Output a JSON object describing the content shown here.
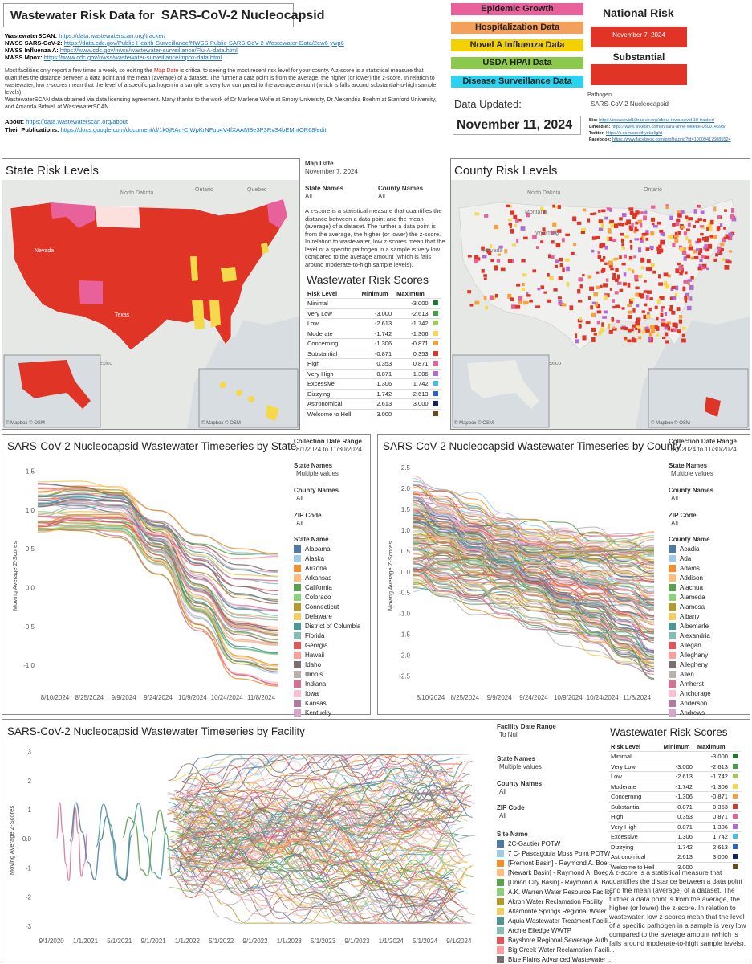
{
  "header": {
    "title_prefix": "Wastewater Risk Data for",
    "title_pathogen": "SARS-CoV-2 Nucleocapsid",
    "links": [
      {
        "label": "WastewaterSCAN:",
        "url": "https://data.wastewaterscan.org/tracker/"
      },
      {
        "label": "NWSS SARS-CoV-2:",
        "url": "https://data.cdc.gov/Public-Health-Surveillance/NWSS-Public-SARS-CoV-2-Wastewater-Data/2ew6-ywp6"
      },
      {
        "label": "NWSS Influenza A:",
        "url": "https://www.cdc.gov/nwss/wastewater-surveillance/Flu-A-data.html"
      },
      {
        "label": "NWSS Mpox:",
        "url": "https://www.cdc.gov/nwss/wastewater-surveillance/mpox-data.html"
      }
    ],
    "para1_a": "Most facilities only report a few times a week, so editing the",
    "para1_highlight": "Map Date",
    "para1_b": "is critical to seeing the most recent risk level for your county. A z-score is a statistical measure that quantifies the distance between a data point and the mean (average) of a dataset. The further a data point is from the average, the higher (or lower) the z-score. In relation to wastewater, low z-scores mean that the level of a specific pathogen in a sample is very low compared to the average amount (which is falls around substantial-to-high sample levels).",
    "para2": "WastewaterSCAN data obtained via data licensing agreement. Many thanks to the work of Dr Marlene Wolfe at Emory University, Dr Alexandria Boehm at Stanford University, and Amanda Bidwell at WastewaterSCAN.",
    "about_label": "About:",
    "about_url": "https://data.wastewaterscan.org/about",
    "pubs_label": "Their Publications:",
    "pubs_url": "https://docs.google.com/document/d/1k0jRAu-CIWpKrNFub4V4fXAAMBe3P3RvS4bEMhtOR68/edit"
  },
  "nav_buttons": [
    {
      "label": "Epidemic Growth",
      "color": "#e8619a"
    },
    {
      "label": "Hospitalization Data",
      "color": "#f5a05a"
    },
    {
      "label": "Novel A Influenza Data",
      "color": "#f5d000"
    },
    {
      "label": "USDA HPAI Data",
      "color": "#8cc84b"
    },
    {
      "label": "Disease Surveillance Data",
      "color": "#2ad4f0"
    }
  ],
  "data_updated": {
    "label": "Data Updated:",
    "date": "November 11, 2024"
  },
  "national_risk": {
    "title": "National Risk",
    "date": "November 7, 2024",
    "level": "Substantial",
    "color": "#e03426"
  },
  "pathogen": {
    "label": "Pathogen",
    "value": "SARS-CoV-2 Nucleocapsid"
  },
  "social": [
    {
      "label": "Bio:",
      "url": "https://iowacovid19tracker.org/about-iowa-covid-19-tracker/"
    },
    {
      "label": "Linked-In:",
      "url": "https://www.linkedin.com/in/sara-anne-willette-080014598/"
    },
    {
      "label": "Twitter:",
      "url": "https://x.com/amethystarlight"
    },
    {
      "label": "Facebook:",
      "url": "https://www.facebook.com/profile.php?id=100094175085524"
    }
  ],
  "state_map": {
    "title": "State Risk Levels",
    "attribution": "© Mapbox © OSM",
    "labels": [
      "North Dakota",
      "Ontario",
      "Quebec",
      "Nevada",
      "Texas",
      "Mexico"
    ]
  },
  "county_map": {
    "title": "County Risk Levels",
    "attribution": "© Mapbox © OSM",
    "labels": [
      "North Dakota",
      "Montana",
      "Wyoming",
      "Ontario",
      "Nevada",
      "Mexico"
    ]
  },
  "filters_top": {
    "map_date_label": "Map Date",
    "map_date": "November 7, 2024",
    "state_names_label": "State Names",
    "state_names": "All",
    "county_names_label": "County Names",
    "county_names": "All",
    "zscore_text": "A z-score is a statistical measure that quantifies the distance between a data point and the mean (average) of a dataset. The further a data point is from the average, the higher (or lower) the z-score. In relation to wastewater, low z-scores mean that the level of a specific pathogen in a sample is very low compared to the average amount (which is falls around moderate-to-high sample levels)."
  },
  "risk_scores": {
    "title": "Wastewater Risk Scores",
    "headers": [
      "Risk Level",
      "Minimum",
      "Maximum"
    ],
    "rows": [
      {
        "level": "Minimal",
        "min": "",
        "max": "-3.000",
        "color": "#1a7a2e"
      },
      {
        "level": "Very Low",
        "min": "-3.000",
        "max": "-2.613",
        "color": "#3fa33f"
      },
      {
        "level": "Low",
        "min": "-2.613",
        "max": "-1.742",
        "color": "#9ccc50"
      },
      {
        "level": "Moderate",
        "min": "-1.742",
        "max": "-1.306",
        "color": "#f5d94a"
      },
      {
        "level": "Concerning",
        "min": "-1.306",
        "max": "-0.871",
        "color": "#f5a13c"
      },
      {
        "level": "Substantial",
        "min": "-0.871",
        "max": "0.353",
        "color": "#e03426"
      },
      {
        "level": "High",
        "min": "0.353",
        "max": "0.871",
        "color": "#e8619a"
      },
      {
        "level": "Very High",
        "min": "0.871",
        "max": "1.306",
        "color": "#b46ad6"
      },
      {
        "level": "Excessive",
        "min": "1.306",
        "max": "1.742",
        "color": "#3fc4e0"
      },
      {
        "level": "Dizzying",
        "min": "1.742",
        "max": "2.613",
        "color": "#2a5fd6"
      },
      {
        "level": "Astronomical",
        "min": "2.613",
        "max": "3.000",
        "color": "#12216b"
      },
      {
        "level": "Welcome to Hell",
        "min": "3.000",
        "max": "",
        "color": "#6b4a1a"
      }
    ]
  },
  "state_ts": {
    "title": "SARS-CoV-2 Nucleocapsid Wastewater Timeseries by State",
    "range_label": "Collection Date Range",
    "range": "8/1/2024 to 11/30/2024",
    "state_names_label": "State Names",
    "state_names": "Multiple values",
    "county_names_label": "County Names",
    "county_names": "All",
    "zip_label": "ZIP Code",
    "zip": "All",
    "legend_title": "State Name",
    "legend": [
      "Alabama",
      "Alaska",
      "Arizona",
      "Arkansas",
      "California",
      "Colorado",
      "Connecticut",
      "Delaware",
      "District of Columbia",
      "Florida",
      "Georgia",
      "Hawaii",
      "Idaho",
      "Illinois",
      "Indiana",
      "Iowa",
      "Kansas",
      "Kentucky"
    ],
    "ylabel": "Moving Average Z-Scores"
  },
  "county_ts": {
    "title": "SARS-CoV-2 Nucleocapsid Wastewater Timeseries by County",
    "range_label": "Collection Date Range",
    "range": "8/1/2024 to 11/30/2024",
    "state_names_label": "State Names",
    "state_names": "Multiple values",
    "county_names_label": "County Names",
    "county_names": "All",
    "zip_label": "ZIP Code",
    "zip": "All",
    "legend_title": "County Name",
    "legend": [
      "Acadia",
      "Ada",
      "Adams",
      "Addison",
      "Alachua",
      "Alameda",
      "Alamosa",
      "Albany",
      "Albemarle",
      "Alexandria",
      "Allegan",
      "Alleghany",
      "Allegheny",
      "Allen",
      "Amherst",
      "Anchorage",
      "Anderson",
      "Andrews"
    ],
    "ylabel": "Moving Average Z-Scores"
  },
  "facility_ts": {
    "title": "SARS-CoV-2 Nucleocapsid Wastewater Timeseries by Facility",
    "range_label": "Facility Date Range",
    "range": "To Null",
    "state_names_label": "State Names",
    "state_names": "Multiple values",
    "county_names_label": "County Names",
    "county_names": "All",
    "zip_label": "ZIP Code",
    "zip": "All",
    "legend_title": "Site Name",
    "legend": [
      "2C-Gautier POTW",
      "7 C- Pascagoula Moss Point POTW",
      "[Fremont Basin] - Raymond A. Boe...",
      "[Newark Basin] - Raymond A. Boeg...",
      "[Union City Basin] - Raymond A. Bo...",
      "A.K. Warren Water Resource Facility",
      "Akron Water Reclamation Facility",
      "Altamonte Springs Regional Water...",
      "Aquia Wastewater Treatment Facili...",
      "Archie Elledge WWTP",
      "Bayshore Regional Sewerage Auth...",
      "Big Creek Water Reclamation Facili...",
      "Blue Plains Advanced Wastewater ..."
    ],
    "ylabel": "Moving Average Z-Scores",
    "zscore_text": "A z-score is a statistical measure that quantifies the distance between a data point and the mean (average) of a dataset. The further a data point is from the average, the higher (or lower) the z-score. In relation to wastewater, low z-scores mean that the level of a specific pathogen in a sample is very low compared to the average amount (which is falls around moderate-to-high sample levels)."
  },
  "chart_data": [
    {
      "type": "line",
      "title": "SARS-CoV-2 Nucleocapsid Wastewater Timeseries by State",
      "ylabel": "Moving Average Z-Scores",
      "x": [
        "8/10/2024",
        "8/25/2024",
        "9/9/2024",
        "9/24/2024",
        "10/9/2024",
        "10/24/2024",
        "11/8/2024"
      ],
      "ylim": [
        -1.3,
        1.6
      ],
      "yticks": [
        -1.0,
        -0.5,
        0.0,
        0.5,
        1.0,
        1.5
      ],
      "series_summary": {
        "start_range": [
          0.7,
          1.5
        ],
        "end_range": [
          -1.3,
          0.45
        ]
      }
    },
    {
      "type": "line",
      "title": "SARS-CoV-2 Nucleocapsid Wastewater Timeseries by County",
      "ylabel": "Moving Average Z-Scores",
      "x": [
        "8/10/2024",
        "8/25/2024",
        "9/9/2024",
        "9/24/2024",
        "10/9/2024",
        "10/24/2024",
        "11/8/2024"
      ],
      "ylim": [
        -2.8,
        2.6
      ],
      "yticks": [
        -2.5,
        -2.0,
        -1.5,
        -1.0,
        -0.5,
        0.0,
        0.5,
        1.0,
        1.5,
        2.0,
        2.5
      ]
    },
    {
      "type": "line",
      "title": "SARS-CoV-2 Nucleocapsid Wastewater Timeseries by Facility",
      "ylabel": "Moving Average Z-Scores",
      "x": [
        "9/1/2020",
        "1/1/2021",
        "5/1/2021",
        "9/1/2021",
        "1/1/2022",
        "5/1/2022",
        "9/1/2022",
        "1/1/2023",
        "5/1/2023",
        "9/1/2023",
        "1/1/2024",
        "5/1/2024",
        "9/1/2024"
      ],
      "ylim": [
        -3.2,
        3.1
      ],
      "yticks": [
        -3,
        -2,
        -1,
        0,
        1,
        2,
        3
      ]
    }
  ]
}
